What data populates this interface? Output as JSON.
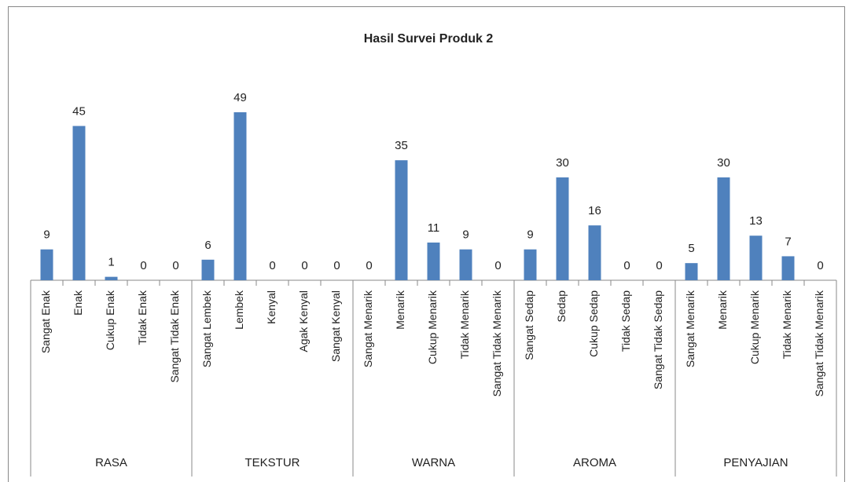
{
  "chart_data": {
    "type": "bar",
    "title": "Hasil Survei Produk 2",
    "groups": [
      "RASA",
      "TEKSTUR",
      "WARNA",
      "AROMA",
      "PENYAJIAN"
    ],
    "categories": [
      "Sangat Enak",
      "Enak",
      "Cukup Enak",
      "Tidak Enak",
      "Sangat Tidak Enak",
      "Sangat Lembek",
      "Lembek",
      "Kenyal",
      "Agak Kenyal",
      "Sangat Kenyal",
      "Sangat Menarik",
      "Menarik",
      "Cukup Menarik",
      "Tidak Menarik",
      "Sangat Tidak Menarik",
      "Sangat Sedap",
      "Sedap",
      "Cukup Sedap",
      "Tidak Sedap",
      "Sangat Tidak Sedap",
      "Sangat Menarik",
      "Menarik",
      "Cukup Menarik",
      "Tidak Menarik",
      "Sangat Tidak Menarik"
    ],
    "values": [
      9,
      45,
      1,
      0,
      0,
      6,
      49,
      0,
      0,
      0,
      0,
      35,
      11,
      9,
      0,
      9,
      30,
      16,
      0,
      0,
      5,
      30,
      13,
      7,
      0
    ],
    "color": "#4f81bd"
  }
}
